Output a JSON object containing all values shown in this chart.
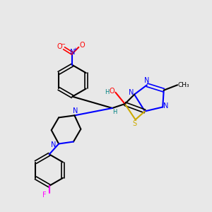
{
  "bg_color": "#e8e8e8",
  "atom_colors": {
    "C": "#000000",
    "N": "#0000ff",
    "O": "#ff0000",
    "S": "#ccaa00",
    "F": "#ff00ff",
    "H": "#008080"
  },
  "bond_color": "#000000",
  "title": ""
}
